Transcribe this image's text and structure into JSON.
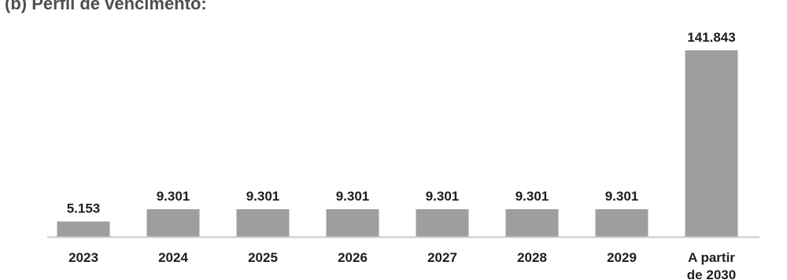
{
  "chart_data": {
    "type": "bar",
    "title": "(b) Perfil de vencimento:",
    "xlabel": "",
    "ylabel": "",
    "categories": [
      "2023",
      "2024",
      "2025",
      "2026",
      "2027",
      "2028",
      "2029",
      "A partir de 2030"
    ],
    "values": [
      5153,
      9301,
      9301,
      9301,
      9301,
      9301,
      9301,
      141843
    ],
    "value_labels": [
      "5.153",
      "9.301",
      "9.301",
      "9.301",
      "9.301",
      "9.301",
      "9.301",
      "141.843"
    ],
    "ylim": [
      0,
      141843
    ],
    "grid": false,
    "legend": "none",
    "colors": {
      "bar": "#9e9e9e",
      "axis": "#c8c8c8",
      "text": "#1e1e1e"
    }
  }
}
